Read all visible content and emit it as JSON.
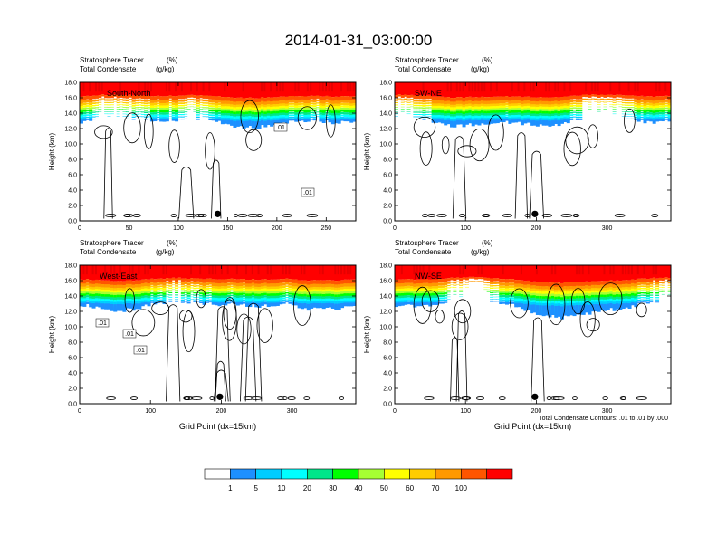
{
  "figure": {
    "title": "2014-01-31_03:00:00",
    "contour_note": "Total Condensate Contours: .01 to .01 by .000"
  },
  "colorbar": {
    "colors": [
      "#ffffff",
      "#1e90ff",
      "#00ccff",
      "#00ffff",
      "#00e68a",
      "#00ff00",
      "#a6ff33",
      "#ffff00",
      "#ffcc00",
      "#ff9900",
      "#ff5500",
      "#ff0000"
    ],
    "labels": [
      "1",
      "5",
      "10",
      "20",
      "30",
      "40",
      "50",
      "60",
      "70",
      "100"
    ]
  },
  "chart_data": [
    {
      "type": "heatmap",
      "panel": "South-North",
      "subtitle_left": "Stratosphere Tracer",
      "subtitle_unit": "(%)",
      "subtitle2_left": "Total Condensate",
      "subtitle2_unit": "(g/kg)",
      "xlabel": "",
      "ylabel": "Height (km)",
      "xlim": [
        0,
        280
      ],
      "ylim": [
        0,
        18
      ],
      "xticks": [
        "0",
        "50",
        "100",
        "150",
        "200",
        "250"
      ],
      "yticks": [
        "0.0",
        "2.0",
        "4.0",
        "6.0",
        "8.0",
        "10.0",
        "12.0",
        "14.0",
        "16.0",
        "18.0"
      ],
      "marker_x": 140,
      "contour_labels": [
        ".01",
        ".01"
      ]
    },
    {
      "type": "heatmap",
      "panel": "SW-NE",
      "subtitle_left": "Stratosphere Tracer",
      "subtitle_unit": "(%)",
      "subtitle2_left": "Total Condensate",
      "subtitle2_unit": "(g/kg)",
      "xlabel": "",
      "ylabel": "Height (km)",
      "xlim": [
        0,
        390
      ],
      "ylim": [
        0,
        18
      ],
      "xticks": [
        "0",
        "100",
        "200",
        "300"
      ],
      "yticks": [
        "0.0",
        "2.0",
        "4.0",
        "6.0",
        "8.0",
        "10.0",
        "12.0",
        "14.0",
        "16.0",
        "18.0"
      ],
      "marker_x": 198,
      "contour_labels": []
    },
    {
      "type": "heatmap",
      "panel": "West-East",
      "subtitle_left": "Stratosphere Tracer",
      "subtitle_unit": "(%)",
      "subtitle2_left": "Total Condensate",
      "subtitle2_unit": "(g/kg)",
      "xlabel": "Grid Point (dx=15km)",
      "ylabel": "Height (km)",
      "xlim": [
        0,
        390
      ],
      "ylim": [
        0,
        18
      ],
      "xticks": [
        "0",
        "100",
        "200",
        "300"
      ],
      "yticks": [
        "0.0",
        "2.0",
        "4.0",
        "6.0",
        "8.0",
        "10.0",
        "12.0",
        "14.0",
        "16.0",
        "18.0"
      ],
      "marker_x": 198,
      "contour_labels": [
        ".01",
        ".01",
        ".01"
      ]
    },
    {
      "type": "heatmap",
      "panel": "NW-SE",
      "subtitle_left": "Stratosphere Tracer",
      "subtitle_unit": "(%)",
      "subtitle2_left": "Total Condensate",
      "subtitle2_unit": "(g/kg)",
      "xlabel": "Grid Point (dx=15km)",
      "ylabel": "Height (km)",
      "xlim": [
        0,
        390
      ],
      "ylim": [
        0,
        18
      ],
      "xticks": [
        "0",
        "100",
        "200",
        "300"
      ],
      "yticks": [
        "0.0",
        "2.0",
        "4.0",
        "6.0",
        "8.0",
        "10.0",
        "12.0",
        "14.0",
        "16.0",
        "18.0"
      ],
      "marker_x": 198,
      "contour_labels": []
    }
  ]
}
